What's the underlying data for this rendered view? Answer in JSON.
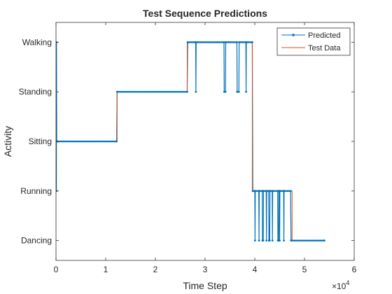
{
  "chart_data": {
    "type": "line",
    "title": "Test Sequence Predictions",
    "xlabel": "Time Step",
    "ylabel": "Activity",
    "xlim": [
      0,
      60000
    ],
    "x_ticks": [
      0,
      10000,
      20000,
      30000,
      40000,
      50000,
      60000
    ],
    "x_tick_labels": [
      "0",
      "1",
      "2",
      "3",
      "4",
      "5",
      "6"
    ],
    "x_exponent": {
      "base": "×10",
      "power": "4"
    },
    "y_categories": [
      "Dancing",
      "Running",
      "Sitting",
      "Standing",
      "Walking"
    ],
    "ylim": [
      -0.4,
      4.4
    ],
    "grid": false,
    "legend_position": "top-right",
    "series": [
      {
        "name": "Predicted",
        "color": "#0072BD",
        "marker": "dot",
        "points": [
          [
            0,
            1
          ],
          [
            80,
            1
          ],
          [
            100,
            4
          ],
          [
            150,
            2
          ],
          [
            200,
            2
          ],
          [
            12200,
            2
          ],
          [
            12300,
            3
          ],
          [
            26400,
            3
          ],
          [
            26500,
            4
          ],
          [
            28100,
            4
          ],
          [
            28150,
            3
          ],
          [
            28200,
            4
          ],
          [
            33800,
            4
          ],
          [
            33850,
            3
          ],
          [
            34100,
            3
          ],
          [
            34150,
            4
          ],
          [
            36400,
            4
          ],
          [
            36450,
            3
          ],
          [
            36800,
            3
          ],
          [
            36850,
            4
          ],
          [
            38200,
            4
          ],
          [
            38250,
            3
          ],
          [
            38300,
            4
          ],
          [
            39500,
            4
          ],
          [
            39600,
            1
          ],
          [
            40000,
            1
          ],
          [
            40050,
            0
          ],
          [
            40100,
            1
          ],
          [
            40800,
            1
          ],
          [
            40850,
            0
          ],
          [
            40900,
            1
          ],
          [
            41500,
            1
          ],
          [
            41550,
            0
          ],
          [
            41700,
            0
          ],
          [
            41750,
            1
          ],
          [
            42300,
            1
          ],
          [
            42350,
            0
          ],
          [
            42400,
            1
          ],
          [
            42800,
            1
          ],
          [
            42850,
            0
          ],
          [
            43000,
            0
          ],
          [
            43050,
            1
          ],
          [
            43500,
            1
          ],
          [
            43550,
            0
          ],
          [
            43600,
            1
          ],
          [
            44600,
            1
          ],
          [
            44650,
            0
          ],
          [
            44800,
            0
          ],
          [
            44850,
            1
          ],
          [
            44950,
            1
          ],
          [
            45000,
            0
          ],
          [
            45050,
            1
          ],
          [
            45800,
            1
          ],
          [
            45850,
            0
          ],
          [
            45900,
            1
          ],
          [
            47200,
            1
          ],
          [
            47300,
            0
          ],
          [
            54000,
            0
          ]
        ]
      },
      {
        "name": "Test Data",
        "color": "#D95319",
        "marker": "none",
        "points": [
          [
            0,
            2
          ],
          [
            12300,
            2
          ],
          [
            12300,
            3
          ],
          [
            26400,
            3
          ],
          [
            26400,
            4
          ],
          [
            39500,
            4
          ],
          [
            39500,
            1
          ],
          [
            47500,
            1
          ],
          [
            47500,
            0
          ],
          [
            54000,
            0
          ]
        ]
      }
    ]
  }
}
